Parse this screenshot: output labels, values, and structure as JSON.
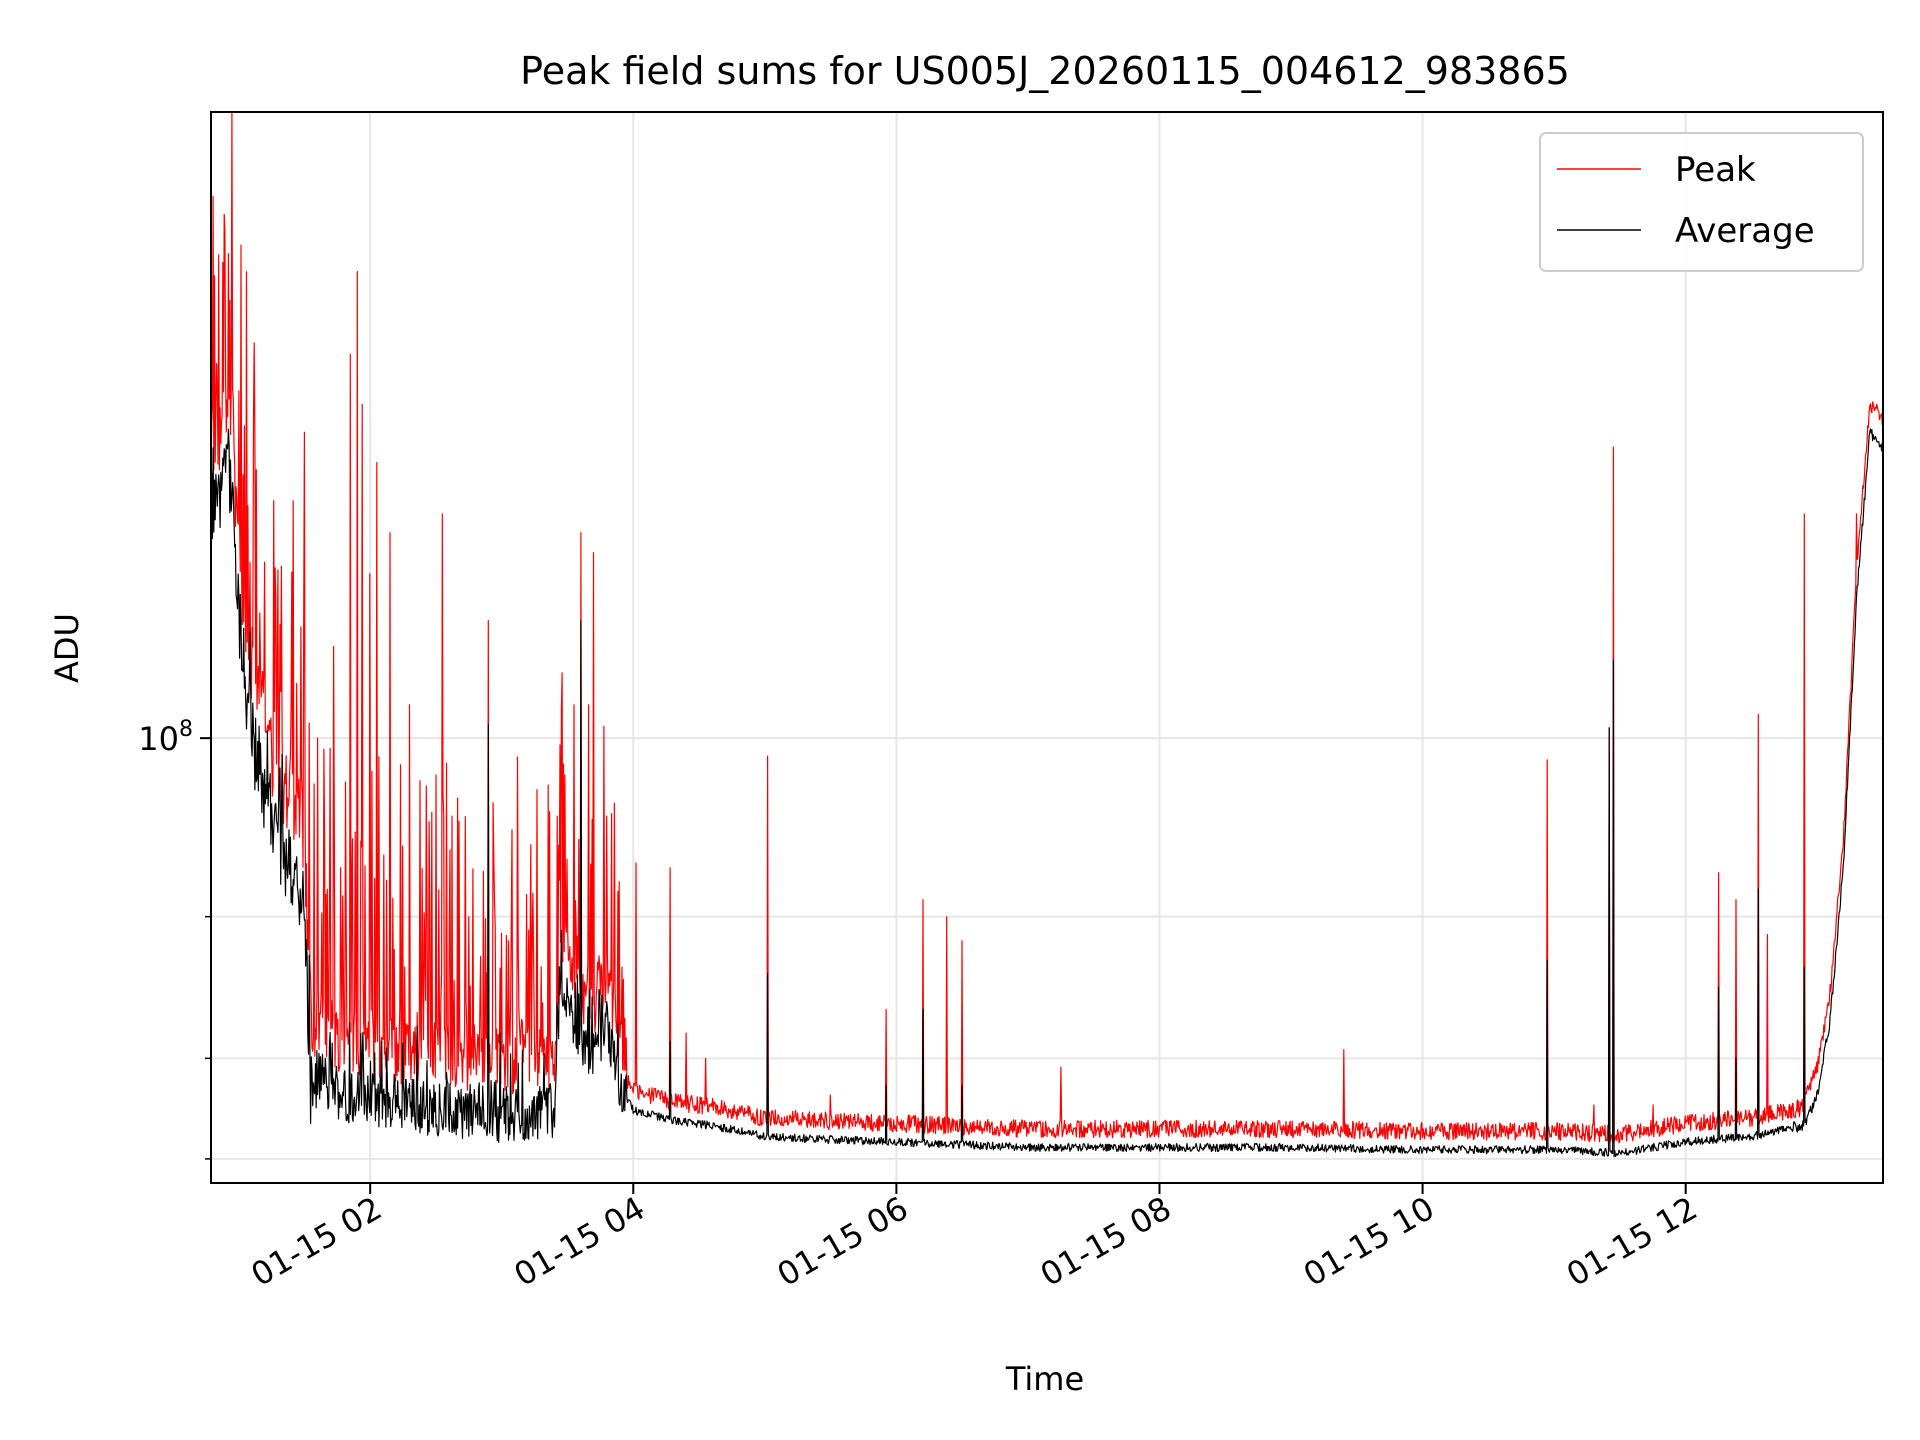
{
  "chart_data": {
    "type": "line",
    "title": "Peak field sums for US005J_20260115_004612_983865",
    "xlabel": "Time",
    "ylabel": "ADU",
    "yscale": "log",
    "x_unit": "hours since 01-15 00:00",
    "xlim": [
      0.79,
      13.5
    ],
    "ylim": [
      28000000,
      600000000
    ],
    "grid": true,
    "legend_position": "top-right",
    "x_ticks": [
      {
        "value": 2,
        "label": "01-15 02"
      },
      {
        "value": 4,
        "label": "01-15 04"
      },
      {
        "value": 6,
        "label": "01-15 06"
      },
      {
        "value": 8,
        "label": "01-15 08"
      },
      {
        "value": 10,
        "label": "01-15 10"
      },
      {
        "value": 12,
        "label": "01-15 12"
      }
    ],
    "y_major_ticks": [
      {
        "value": 100000000,
        "base": "10",
        "exp": "8"
      }
    ],
    "y_minor_ticks": [
      30000000,
      40000000,
      60000000
    ],
    "baseline": {
      "x": [
        0.79,
        0.85,
        0.9,
        0.95,
        1.0,
        1.1,
        1.2,
        1.3,
        1.4,
        1.5,
        1.55,
        1.6,
        1.8,
        2.0,
        2.3,
        2.6,
        3.0,
        3.4,
        3.45,
        3.5,
        3.6,
        3.7,
        3.8,
        3.85,
        3.9,
        4.0,
        4.3,
        4.6,
        5.0,
        5.5,
        6.0,
        7.0,
        8.0,
        9.0,
        10.0,
        11.0,
        11.5,
        12.0,
        12.5,
        12.9,
        13.0,
        13.1,
        13.2,
        13.3,
        13.4,
        13.5
      ],
      "y": [
        190000000,
        195000000,
        230000000,
        200000000,
        140000000,
        100000000,
        85000000,
        75000000,
        68000000,
        62000000,
        36000000,
        38000000,
        36000000,
        35500000,
        35000000,
        34500000,
        34000000,
        34500000,
        50000000,
        47000000,
        42000000,
        40000000,
        44000000,
        40000000,
        37000000,
        34500000,
        33500000,
        33000000,
        32000000,
        31700000,
        31500000,
        31000000,
        31000000,
        31000000,
        30800000,
        30800000,
        30500000,
        31500000,
        32000000,
        33000000,
        36000000,
        45000000,
        70000000,
        150000000,
        240000000,
        230000000
      ]
    },
    "series": [
      {
        "name": "Peak",
        "color": "#ff0000",
        "spikes": [
          {
            "x": 0.95,
            "y": 600000000
          },
          {
            "x": 0.88,
            "y": 390000000
          },
          {
            "x": 0.92,
            "y": 400000000
          },
          {
            "x": 1.02,
            "y": 410000000
          },
          {
            "x": 1.06,
            "y": 380000000
          },
          {
            "x": 1.12,
            "y": 310000000
          },
          {
            "x": 1.28,
            "y": 150000000
          },
          {
            "x": 1.4,
            "y": 110000000
          },
          {
            "x": 1.5,
            "y": 240000000
          },
          {
            "x": 1.6,
            "y": 100000000
          },
          {
            "x": 1.72,
            "y": 130000000
          },
          {
            "x": 1.85,
            "y": 300000000
          },
          {
            "x": 1.9,
            "y": 380000000
          },
          {
            "x": 1.94,
            "y": 260000000
          },
          {
            "x": 2.0,
            "y": 160000000
          },
          {
            "x": 2.05,
            "y": 220000000
          },
          {
            "x": 2.15,
            "y": 180000000
          },
          {
            "x": 2.3,
            "y": 110000000
          },
          {
            "x": 2.5,
            "y": 90000000
          },
          {
            "x": 2.55,
            "y": 190000000
          },
          {
            "x": 2.62,
            "y": 80000000
          },
          {
            "x": 2.75,
            "y": 60000000
          },
          {
            "x": 2.9,
            "y": 140000000
          },
          {
            "x": 3.05,
            "y": 56000000
          },
          {
            "x": 3.3,
            "y": 52000000
          },
          {
            "x": 3.42,
            "y": 80000000
          },
          {
            "x": 3.48,
            "y": 90000000
          },
          {
            "x": 3.55,
            "y": 110000000
          },
          {
            "x": 3.6,
            "y": 180000000
          },
          {
            "x": 3.66,
            "y": 110000000
          },
          {
            "x": 3.7,
            "y": 170000000
          },
          {
            "x": 3.8,
            "y": 80000000
          },
          {
            "x": 4.02,
            "y": 70000000
          },
          {
            "x": 4.28,
            "y": 69000000
          },
          {
            "x": 4.4,
            "y": 43000000
          },
          {
            "x": 4.55,
            "y": 40000000
          },
          {
            "x": 5.02,
            "y": 95000000
          },
          {
            "x": 5.5,
            "y": 36000000
          },
          {
            "x": 5.92,
            "y": 46000000
          },
          {
            "x": 6.2,
            "y": 63000000
          },
          {
            "x": 6.38,
            "y": 60000000
          },
          {
            "x": 6.5,
            "y": 56000000
          },
          {
            "x": 7.25,
            "y": 39000000
          },
          {
            "x": 9.4,
            "y": 41000000
          },
          {
            "x": 10.95,
            "y": 94000000
          },
          {
            "x": 11.3,
            "y": 35000000
          },
          {
            "x": 11.42,
            "y": 103000000
          },
          {
            "x": 11.45,
            "y": 230000000
          },
          {
            "x": 11.75,
            "y": 35000000
          },
          {
            "x": 12.25,
            "y": 68000000
          },
          {
            "x": 12.38,
            "y": 63000000
          },
          {
            "x": 12.55,
            "y": 107000000
          },
          {
            "x": 12.62,
            "y": 57000000
          },
          {
            "x": 12.9,
            "y": 190000000
          },
          {
            "x": 13.3,
            "y": 190000000
          },
          {
            "x": 13.45,
            "y": 260000000
          }
        ]
      },
      {
        "name": "Average",
        "color": "#000000",
        "spikes": [
          {
            "x": 3.6,
            "y": 140000000
          },
          {
            "x": 2.9,
            "y": 104000000
          },
          {
            "x": 5.02,
            "y": 51000000
          },
          {
            "x": 6.2,
            "y": 46000000
          },
          {
            "x": 6.5,
            "y": 37000000
          },
          {
            "x": 10.95,
            "y": 53000000
          },
          {
            "x": 11.42,
            "y": 103000000
          },
          {
            "x": 11.45,
            "y": 125000000
          },
          {
            "x": 12.25,
            "y": 49000000
          },
          {
            "x": 12.38,
            "y": 40000000
          },
          {
            "x": 12.55,
            "y": 65000000
          },
          {
            "x": 12.9,
            "y": 52000000
          },
          {
            "x": 4.28,
            "y": 42000000
          },
          {
            "x": 5.92,
            "y": 37000000
          }
        ]
      }
    ]
  }
}
